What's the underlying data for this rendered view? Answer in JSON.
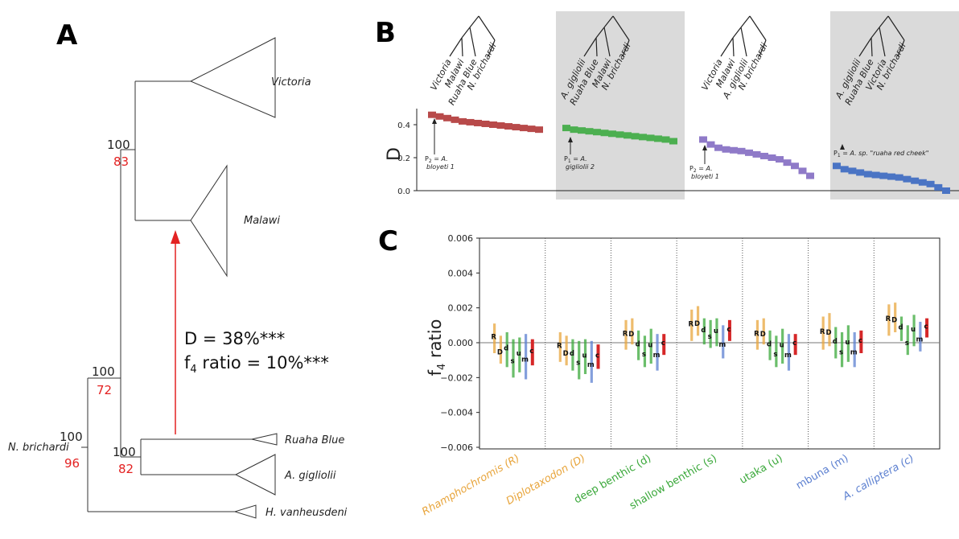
{
  "panel_a": {
    "letter": "A",
    "clades": [
      "Victoria",
      "Malawi",
      "Ruaha Blue",
      "A. gigliolii",
      "H. vanheusdeni"
    ],
    "outgroup": "N. brichardi",
    "nodes": [
      {
        "bootstrap": "100",
        "support": "83"
      },
      {
        "bootstrap": "100",
        "support": "72"
      },
      {
        "bootstrap": "100",
        "support": "96"
      },
      {
        "bootstrap": "100",
        "support": "82"
      }
    ],
    "stat_d": "D = 38%***",
    "stat_f4_pre": "f",
    "stat_f4_sub": "4",
    "stat_f4_post": " ratio = 10%***"
  },
  "panel_b": {
    "letter": "B",
    "ylabel": "D",
    "yticks": [
      "0.4",
      "0.2",
      "0.0"
    ],
    "trees": [
      {
        "leaves": [
          "Victoria",
          "Malawi",
          "Ruaha Blue",
          "N. brichardi"
        ]
      },
      {
        "leaves": [
          "A. gigliolii",
          "Ruaha Blue",
          "Malawi",
          "N. brichardi"
        ]
      },
      {
        "leaves": [
          "Victoria",
          "Malawi",
          "A. gigliolii",
          "N. brichardi"
        ]
      },
      {
        "leaves": [
          "A. gigliolii",
          "Ruaha Blue",
          "Victoria",
          "N. brichardi"
        ]
      }
    ],
    "annotations": [
      {
        "prefix": "P",
        "sub": "2",
        "eq": " = ",
        "species": "A.",
        "line2": "bloyeti 1"
      },
      {
        "prefix": "P",
        "sub": "1",
        "eq": " = ",
        "species": "A.",
        "line2": "gigliolii 2"
      },
      {
        "prefix": "P",
        "sub": "2",
        "eq": " = ",
        "species": "A.",
        "line2": "bloyeti 1"
      },
      {
        "prefix": "P",
        "sub": "1",
        "eq": " = ",
        "species": "A. sp. \"ruaha red cheek\"",
        "line2": ""
      }
    ]
  },
  "panel_c": {
    "letter": "C",
    "ylabel_pre": "f",
    "ylabel_sub": "4",
    "ylabel_post": " ratio",
    "yticks": [
      "0.006",
      "0.004",
      "0.002",
      "0.000",
      "−0.002",
      "−0.004",
      "−0.006"
    ],
    "groups": [
      {
        "label": "Rhamphochromis (R)",
        "color": "#e8a53c",
        "italic": true
      },
      {
        "label": "Diplotaxodon (D)",
        "color": "#e8a53c",
        "italic": true
      },
      {
        "label": "deep benthic (d)",
        "color": "#3aa83a",
        "italic": false
      },
      {
        "label": "shallow benthic (s)",
        "color": "#3aa83a",
        "italic": false
      },
      {
        "label": "utaka (u)",
        "color": "#3aa83a",
        "italic": false
      },
      {
        "label": "mbuna (m)",
        "color": "#5b7fd0",
        "italic": false
      },
      {
        "label": "A. calliptera (c)",
        "color": "#5b7fd0",
        "italic": true
      }
    ],
    "bar_letters": [
      "R",
      "D",
      "d",
      "s",
      "u",
      "m",
      "c"
    ]
  },
  "chart_data": [
    {
      "type": "scatter",
      "ylabel": "D",
      "ylim": [
        0,
        0.5
      ],
      "series": [
        {
          "color": "#b84a4a",
          "values": [
            0.46,
            0.45,
            0.44,
            0.43,
            0.42,
            0.415,
            0.41,
            0.405,
            0.4,
            0.395,
            0.39,
            0.385,
            0.38,
            0.375,
            0.37
          ]
        },
        {
          "color": "#4caf50",
          "values": [
            0.38,
            0.37,
            0.365,
            0.36,
            0.355,
            0.35,
            0.345,
            0.34,
            0.335,
            0.33,
            0.325,
            0.32,
            0.315,
            0.31,
            0.3
          ]
        },
        {
          "color": "#8f7ac8",
          "values": [
            0.31,
            0.28,
            0.26,
            0.25,
            0.245,
            0.24,
            0.23,
            0.22,
            0.21,
            0.2,
            0.19,
            0.17,
            0.15,
            0.12,
            0.09
          ]
        },
        {
          "color": "#4a74c4",
          "values": [
            0.15,
            0.13,
            0.12,
            0.11,
            0.1,
            0.095,
            0.09,
            0.085,
            0.08,
            0.07,
            0.06,
            0.05,
            0.04,
            0.02,
            0.0
          ]
        }
      ]
    },
    {
      "type": "bar",
      "ylabel": "f4 ratio",
      "ylim": [
        -0.006,
        0.006
      ],
      "categories": [
        "Rhamphochromis (R)",
        "Diplotaxodon (D)",
        "deep benthic (d)",
        "shallow benthic (s)",
        "utaka (u)",
        "mbuna (m)",
        "A. calliptera (c)"
      ],
      "bar_colors": [
        "#e8a53c",
        "#e8a53c",
        "#3aa83a",
        "#3aa83a",
        "#3aa83a",
        "#5b7fd0",
        "#d62728"
      ],
      "groups": [
        {
          "bars": [
            [
              -0.0006,
              0.0011
            ],
            [
              -0.0012,
              0.0004
            ],
            [
              -0.0014,
              0.0006
            ],
            [
              -0.002,
              0.0002
            ],
            [
              -0.0017,
              0.0003
            ],
            [
              -0.0021,
              0.0005
            ],
            [
              -0.0013,
              0.0002
            ]
          ]
        },
        {
          "bars": [
            [
              -0.0011,
              0.0006
            ],
            [
              -0.0013,
              0.0004
            ],
            [
              -0.0016,
              0.0002
            ],
            [
              -0.0021,
              0.0001
            ],
            [
              -0.0018,
              0.0002
            ],
            [
              -0.0023,
              0.0001
            ],
            [
              -0.0015,
              -0.0001
            ]
          ]
        },
        {
          "bars": [
            [
              -0.0004,
              0.0013
            ],
            [
              -0.0001,
              0.0014
            ],
            [
              -0.001,
              0.0007
            ],
            [
              -0.0014,
              0.0004
            ],
            [
              -0.0012,
              0.0008
            ],
            [
              -0.0016,
              0.0005
            ],
            [
              -0.0007,
              0.0005
            ]
          ]
        },
        {
          "bars": [
            [
              0.0001,
              0.0019
            ],
            [
              0.0004,
              0.0021
            ],
            [
              -0.0001,
              0.0014
            ],
            [
              -0.0003,
              0.0013
            ],
            [
              -0.0002,
              0.0014
            ],
            [
              -0.0009,
              0.001
            ],
            [
              0.0001,
              0.0013
            ]
          ]
        },
        {
          "bars": [
            [
              -0.0004,
              0.0013
            ],
            [
              -0.0001,
              0.0014
            ],
            [
              -0.001,
              0.0007
            ],
            [
              -0.0014,
              0.0004
            ],
            [
              -0.0012,
              0.0008
            ],
            [
              -0.0016,
              0.0005
            ],
            [
              -0.0007,
              0.0005
            ]
          ]
        },
        {
          "bars": [
            [
              -0.0004,
              0.0015
            ],
            [
              -0.0002,
              0.0017
            ],
            [
              -0.0009,
              0.0009
            ],
            [
              -0.0014,
              0.0006
            ],
            [
              -0.0011,
              0.001
            ],
            [
              -0.0014,
              0.0006
            ],
            [
              -0.0006,
              0.0007
            ]
          ]
        },
        {
          "bars": [
            [
              0.0004,
              0.0022
            ],
            [
              0.0006,
              0.0023
            ],
            [
              0.0001,
              0.0015
            ],
            [
              -0.0007,
              0.001
            ],
            [
              -0.0002,
              0.0016
            ],
            [
              -0.0005,
              0.0012
            ],
            [
              0.0003,
              0.0014
            ]
          ]
        }
      ]
    }
  ]
}
